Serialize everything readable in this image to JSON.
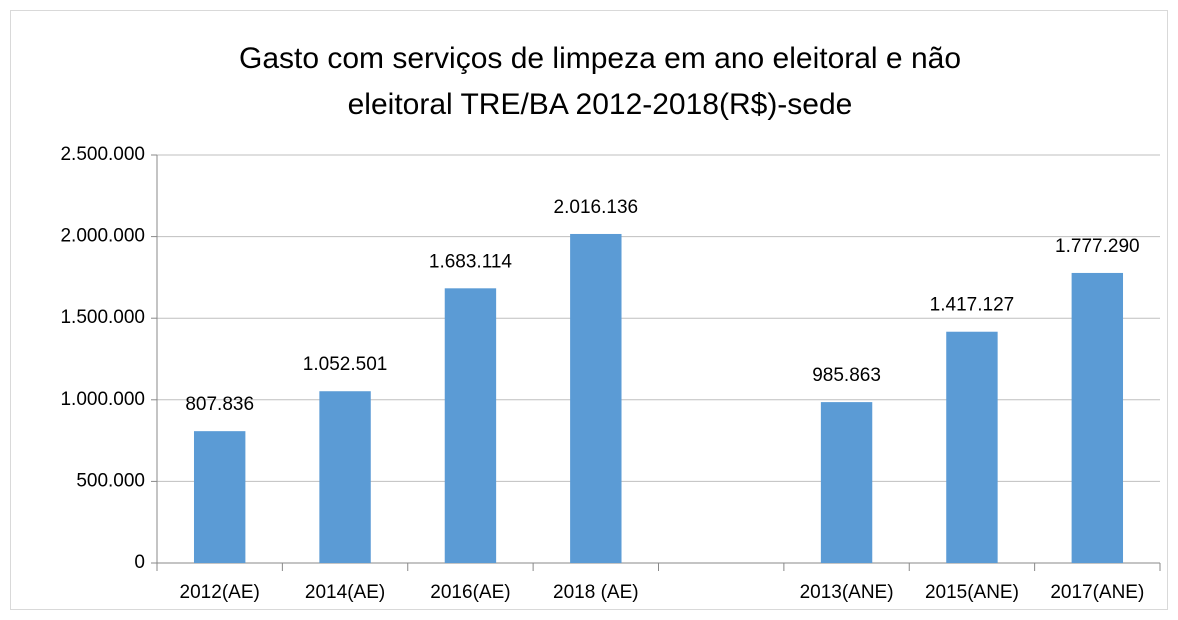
{
  "chart_data": {
    "type": "bar",
    "title": [
      "Gasto com serviços de limpeza  em ano eleitoral e não",
      "eleitoral TRE/BA 2012-2018(R$)-sede"
    ],
    "categories": [
      "2012(AE)",
      "2014(AE)",
      "2016(AE)",
      "2018 (AE)",
      null,
      "2013(ANE)",
      "2015(ANE)",
      "2017(ANE)"
    ],
    "values": [
      807836,
      1052501,
      1683114,
      2016136,
      null,
      985863,
      1417127,
      1777290
    ],
    "value_labels": [
      "807.836",
      "1.052.501",
      "1.683.114",
      "2.016.136",
      null,
      "985.863",
      "1.417.127",
      "1.777.290"
    ],
    "color": "#5b9bd5",
    "ylim": [
      0,
      2500000
    ],
    "yticks": [
      0,
      {
        "value": 500000,
        "label": "500.000"
      },
      {
        "value": 1000000,
        "label": "1.000.000"
      },
      {
        "value": 1500000,
        "label": "1.500.000"
      },
      {
        "value": 2000000,
        "label": "2.000.000"
      },
      {
        "value": 2500000,
        "label": "2.500.000"
      }
    ],
    "grid": true
  }
}
